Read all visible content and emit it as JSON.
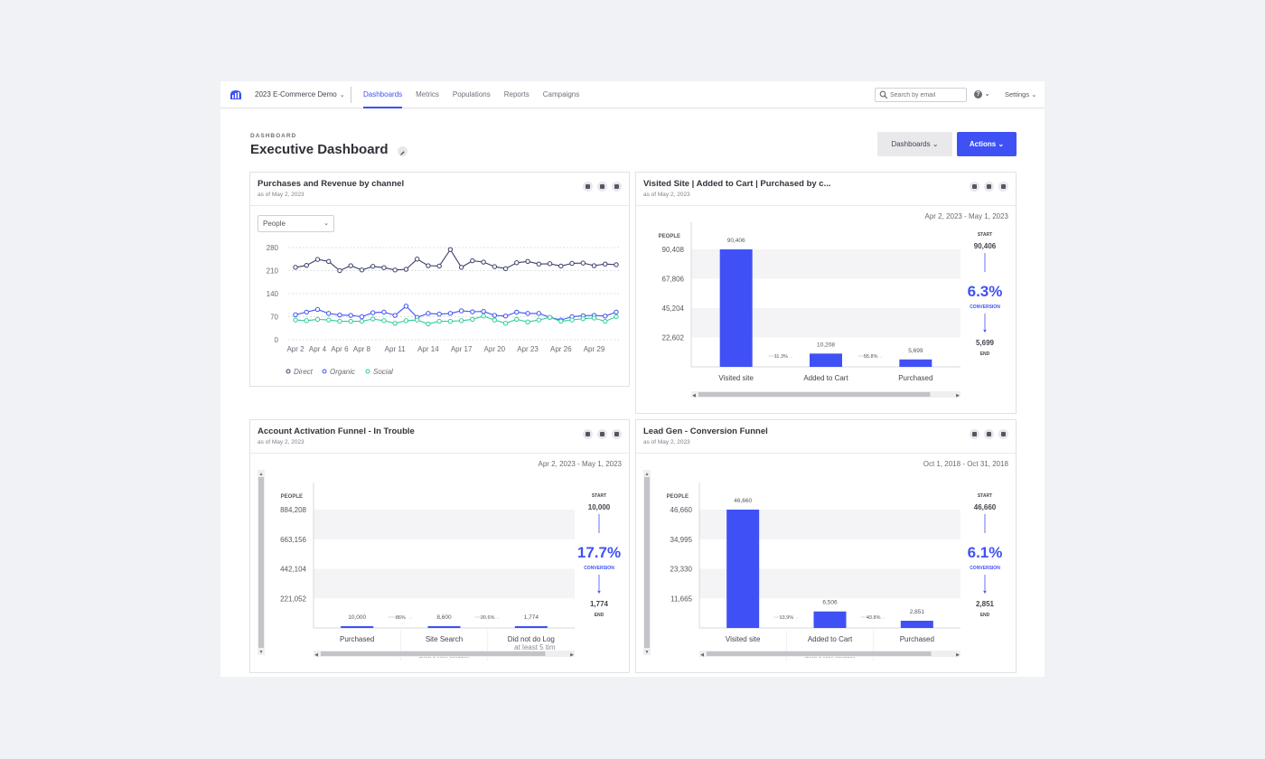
{
  "topbar": {
    "project": "2023 E-Commerce Demo",
    "tabs": [
      "Dashboards",
      "Metrics",
      "Populations",
      "Reports",
      "Campaigns"
    ],
    "active_tab": "Dashboards",
    "search_placeholder": "Search by email",
    "settings": "Settings"
  },
  "header": {
    "eyebrow": "DASHBOARD",
    "title": "Executive Dashboard",
    "dashboards_btn": "Dashboards",
    "actions_btn": "Actions"
  },
  "colors": {
    "accent": "#3f51f5",
    "direct": "#3b3f6b",
    "organic": "#3f51f5",
    "social": "#2fcf92"
  },
  "cards": {
    "purchases": {
      "title": "Purchases and Revenue by channel",
      "subtitle": "as of May 2, 2023",
      "select": "People"
    },
    "visited": {
      "title": "Visited Site | Added to Cart | Purchased by c...",
      "subtitle": "as of May 2, 2023",
      "date_range": "Apr 2, 2023 - May 1, 2023"
    },
    "activation": {
      "title": "Account Activation Funnel - In Trouble",
      "subtitle": "as of May 2, 2023",
      "date_range": "Apr 2, 2023 - May 1, 2023"
    },
    "leadgen": {
      "title": "Lead Gen - Conversion Funnel",
      "subtitle": "as of May 2, 2023",
      "date_range": "Oct 1, 2018 - Oct 31, 2018"
    }
  },
  "chart_data": [
    {
      "type": "line",
      "title": "Purchases and Revenue by channel",
      "x": [
        "Apr 2",
        "Apr 3",
        "Apr 4",
        "Apr 5",
        "Apr 6",
        "Apr 7",
        "Apr 8",
        "Apr 9",
        "Apr 10",
        "Apr 11",
        "Apr 12",
        "Apr 13",
        "Apr 14",
        "Apr 15",
        "Apr 16",
        "Apr 17",
        "Apr 18",
        "Apr 19",
        "Apr 20",
        "Apr 21",
        "Apr 22",
        "Apr 23",
        "Apr 24",
        "Apr 25",
        "Apr 26",
        "Apr 27",
        "Apr 28",
        "Apr 29",
        "Apr 30",
        "May 1"
      ],
      "xtick_labels": [
        "Apr 2",
        "Apr 4",
        "Apr 6",
        "Apr 8",
        "Apr 11",
        "Apr 14",
        "Apr 17",
        "Apr 20",
        "Apr 23",
        "Apr 26",
        "Apr 29"
      ],
      "yticks": [
        0,
        70,
        140,
        210,
        280
      ],
      "ylim": [
        0,
        280
      ],
      "series": [
        {
          "name": "Direct",
          "values": [
            220,
            226,
            244,
            238,
            210,
            225,
            212,
            223,
            219,
            212,
            214,
            245,
            225,
            224,
            274,
            220,
            240,
            236,
            222,
            216,
            234,
            238,
            230,
            231,
            224,
            232,
            233,
            225,
            230,
            228
          ]
        },
        {
          "name": "Organic",
          "values": [
            76,
            84,
            92,
            80,
            75,
            74,
            70,
            82,
            84,
            74,
            102,
            68,
            80,
            78,
            80,
            88,
            85,
            86,
            74,
            72,
            84,
            80,
            80,
            68,
            60,
            70,
            73,
            74,
            72,
            84
          ]
        },
        {
          "name": "Social",
          "values": [
            60,
            58,
            62,
            60,
            56,
            56,
            56,
            63,
            58,
            50,
            58,
            60,
            48,
            56,
            56,
            58,
            62,
            72,
            60,
            50,
            62,
            54,
            60,
            68,
            56,
            60,
            64,
            66,
            56,
            70
          ]
        }
      ]
    },
    {
      "type": "bar",
      "title": "Visited Site | Added to Cart | Purchased by c...",
      "ylabel": "PEOPLE",
      "yticks": [
        "90,408",
        "67,806",
        "45,204",
        "22,602"
      ],
      "ylim": [
        0,
        90408
      ],
      "categories": [
        "Visited site",
        "Added to Cart",
        "Purchased"
      ],
      "values": [
        90406,
        10208,
        5699
      ],
      "value_labels": [
        "90,406",
        "10,208",
        "5,699"
      ],
      "step_rates": [
        "11.3%",
        "55.8%"
      ],
      "start_label": "START",
      "start_value": "90,406",
      "conversion": "6.3%",
      "conversion_label": "CONVERSION",
      "end_label": "END",
      "end_value": "5,699"
    },
    {
      "type": "bar",
      "title": "Account Activation Funnel - In Trouble",
      "ylabel": "PEOPLE",
      "yticks": [
        "884,208",
        "663,156",
        "442,104",
        "221,052"
      ],
      "ylim": [
        0,
        884208
      ],
      "categories": [
        "Purchased",
        "Site Search",
        "Did not do Log"
      ],
      "category_notes": [
        "",
        "Show 1 more condition",
        "at least 5 tim"
      ],
      "values": [
        10000,
        8600,
        1774
      ],
      "value_labels": [
        "10,000",
        "8,600",
        "1,774"
      ],
      "step_rates": [
        "86%",
        "20.6%"
      ],
      "start_label": "START",
      "start_value": "10,000",
      "conversion": "17.7%",
      "conversion_label": "CONVERSION",
      "end_label": "END",
      "end_value": "1,774"
    },
    {
      "type": "bar",
      "title": "Lead Gen - Conversion Funnel",
      "ylabel": "PEOPLE",
      "yticks": [
        "46,660",
        "34,995",
        "23,330",
        "11,665"
      ],
      "ylim": [
        0,
        46660
      ],
      "categories": [
        "Visited site",
        "Added to Cart",
        "Purchased"
      ],
      "category_notes": [
        "",
        "Show 1 more condition",
        ""
      ],
      "values": [
        46660,
        6506,
        2851
      ],
      "value_labels": [
        "46,660",
        "6,506",
        "2,851"
      ],
      "step_rates": [
        "13.9%",
        "43.8%"
      ],
      "start_label": "START",
      "start_value": "46,660",
      "conversion": "6.1%",
      "conversion_label": "CONVERSION",
      "end_label": "END",
      "end_value": "2,851"
    }
  ]
}
